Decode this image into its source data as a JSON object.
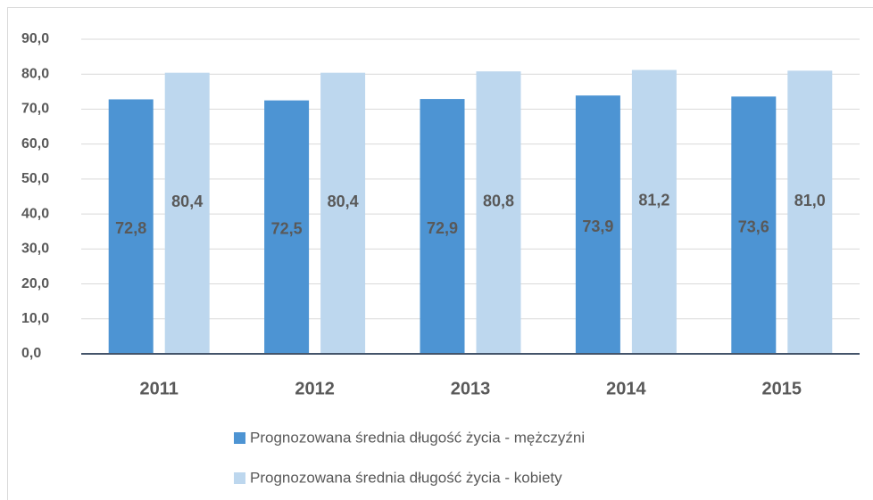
{
  "chart_data": {
    "type": "bar",
    "categories": [
      "2011",
      "2012",
      "2013",
      "2014",
      "2015"
    ],
    "series": [
      {
        "name": "Prognozowana średnia długość życia - mężczyźni",
        "color": "#4d94d3",
        "values": [
          72.8,
          72.5,
          72.9,
          73.9,
          73.6
        ],
        "value_labels": [
          "72,8",
          "72,5",
          "72,9",
          "73,9",
          "73,6"
        ]
      },
      {
        "name": "Prognozowana średnia długość życia - kobiety",
        "color": "#bdd7ee",
        "values": [
          80.4,
          80.4,
          80.8,
          81.2,
          81.0
        ],
        "value_labels": [
          "80,4",
          "80,4",
          "80,8",
          "81,2",
          "81,0"
        ]
      }
    ],
    "ylim": [
      0,
      90
    ],
    "yticks": [
      {
        "value": 0,
        "label": "0,0"
      },
      {
        "value": 10,
        "label": "10,0"
      },
      {
        "value": 20,
        "label": "20,0"
      },
      {
        "value": 30,
        "label": "30,0"
      },
      {
        "value": 40,
        "label": "40,0"
      },
      {
        "value": 50,
        "label": "50,0"
      },
      {
        "value": 60,
        "label": "60,0"
      },
      {
        "value": 70,
        "label": "70,0"
      },
      {
        "value": 80,
        "label": "80,0"
      },
      {
        "value": 90,
        "label": "90,0"
      }
    ],
    "grid": true
  }
}
